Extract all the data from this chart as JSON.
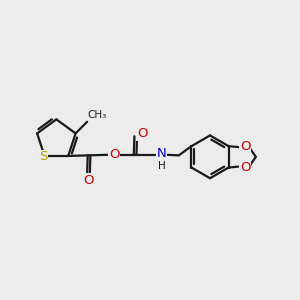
{
  "bg_color": "#ececec",
  "bond_color": "#1a1a1a",
  "S_color": "#b8a000",
  "O_color": "#cc0000",
  "N_color": "#0000cc",
  "lw": 1.6,
  "figsize": [
    3.0,
    3.0
  ],
  "dpi": 100,
  "xlim": [
    0,
    10
  ],
  "ylim": [
    0,
    10
  ]
}
